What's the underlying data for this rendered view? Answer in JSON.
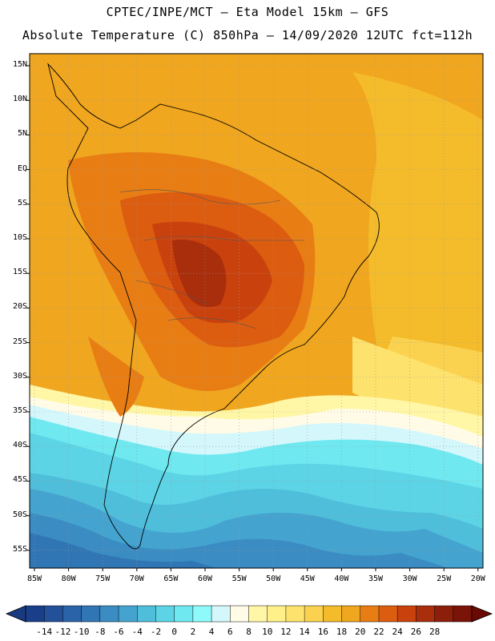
{
  "header": {
    "line1": "CPTEC/INPE/MCT –   Eta Model 15km – GFS",
    "line2": "Absolute Temperature (C) 850hPa – 14/09/2020 12UTC fct=112h"
  },
  "map": {
    "lat_labels": [
      "15N",
      "10N",
      "5N",
      "EQ",
      "5S",
      "10S",
      "15S",
      "20S",
      "25S",
      "30S",
      "35S",
      "40S",
      "45S",
      "50S",
      "55S"
    ],
    "lon_labels": [
      "85W",
      "80W",
      "75W",
      "70W",
      "65W",
      "60W",
      "55W",
      "50W",
      "45W",
      "40W",
      "35W",
      "30W",
      "25W",
      "20W"
    ]
  },
  "colorbar": {
    "labels": [
      "-14",
      "-12",
      "-10",
      "-8",
      "-6",
      "-4",
      "-2",
      "0",
      "2",
      "4",
      "6",
      "8",
      "10",
      "12",
      "14",
      "16",
      "18",
      "20",
      "22",
      "24",
      "26",
      "28"
    ],
    "colors": [
      "#1a3f8a",
      "#22519a",
      "#2a63a8",
      "#3176b4",
      "#3a8cc2",
      "#44a4cf",
      "#4fbedb",
      "#5cd4e6",
      "#6fe8f0",
      "#8ffafa",
      "#d4f7fc",
      "#fffbe6",
      "#fff7a6",
      "#fff08a",
      "#fde26d",
      "#fbd24f",
      "#f4bb2b",
      "#f0a61f",
      "#e87d14",
      "#dc5c10",
      "#c9420d",
      "#a82e0c",
      "#8c1f0a",
      "#7a1308"
    ],
    "left_arrow_color": "#1a3a80",
    "right_arrow_color": "#6a0a05"
  }
}
